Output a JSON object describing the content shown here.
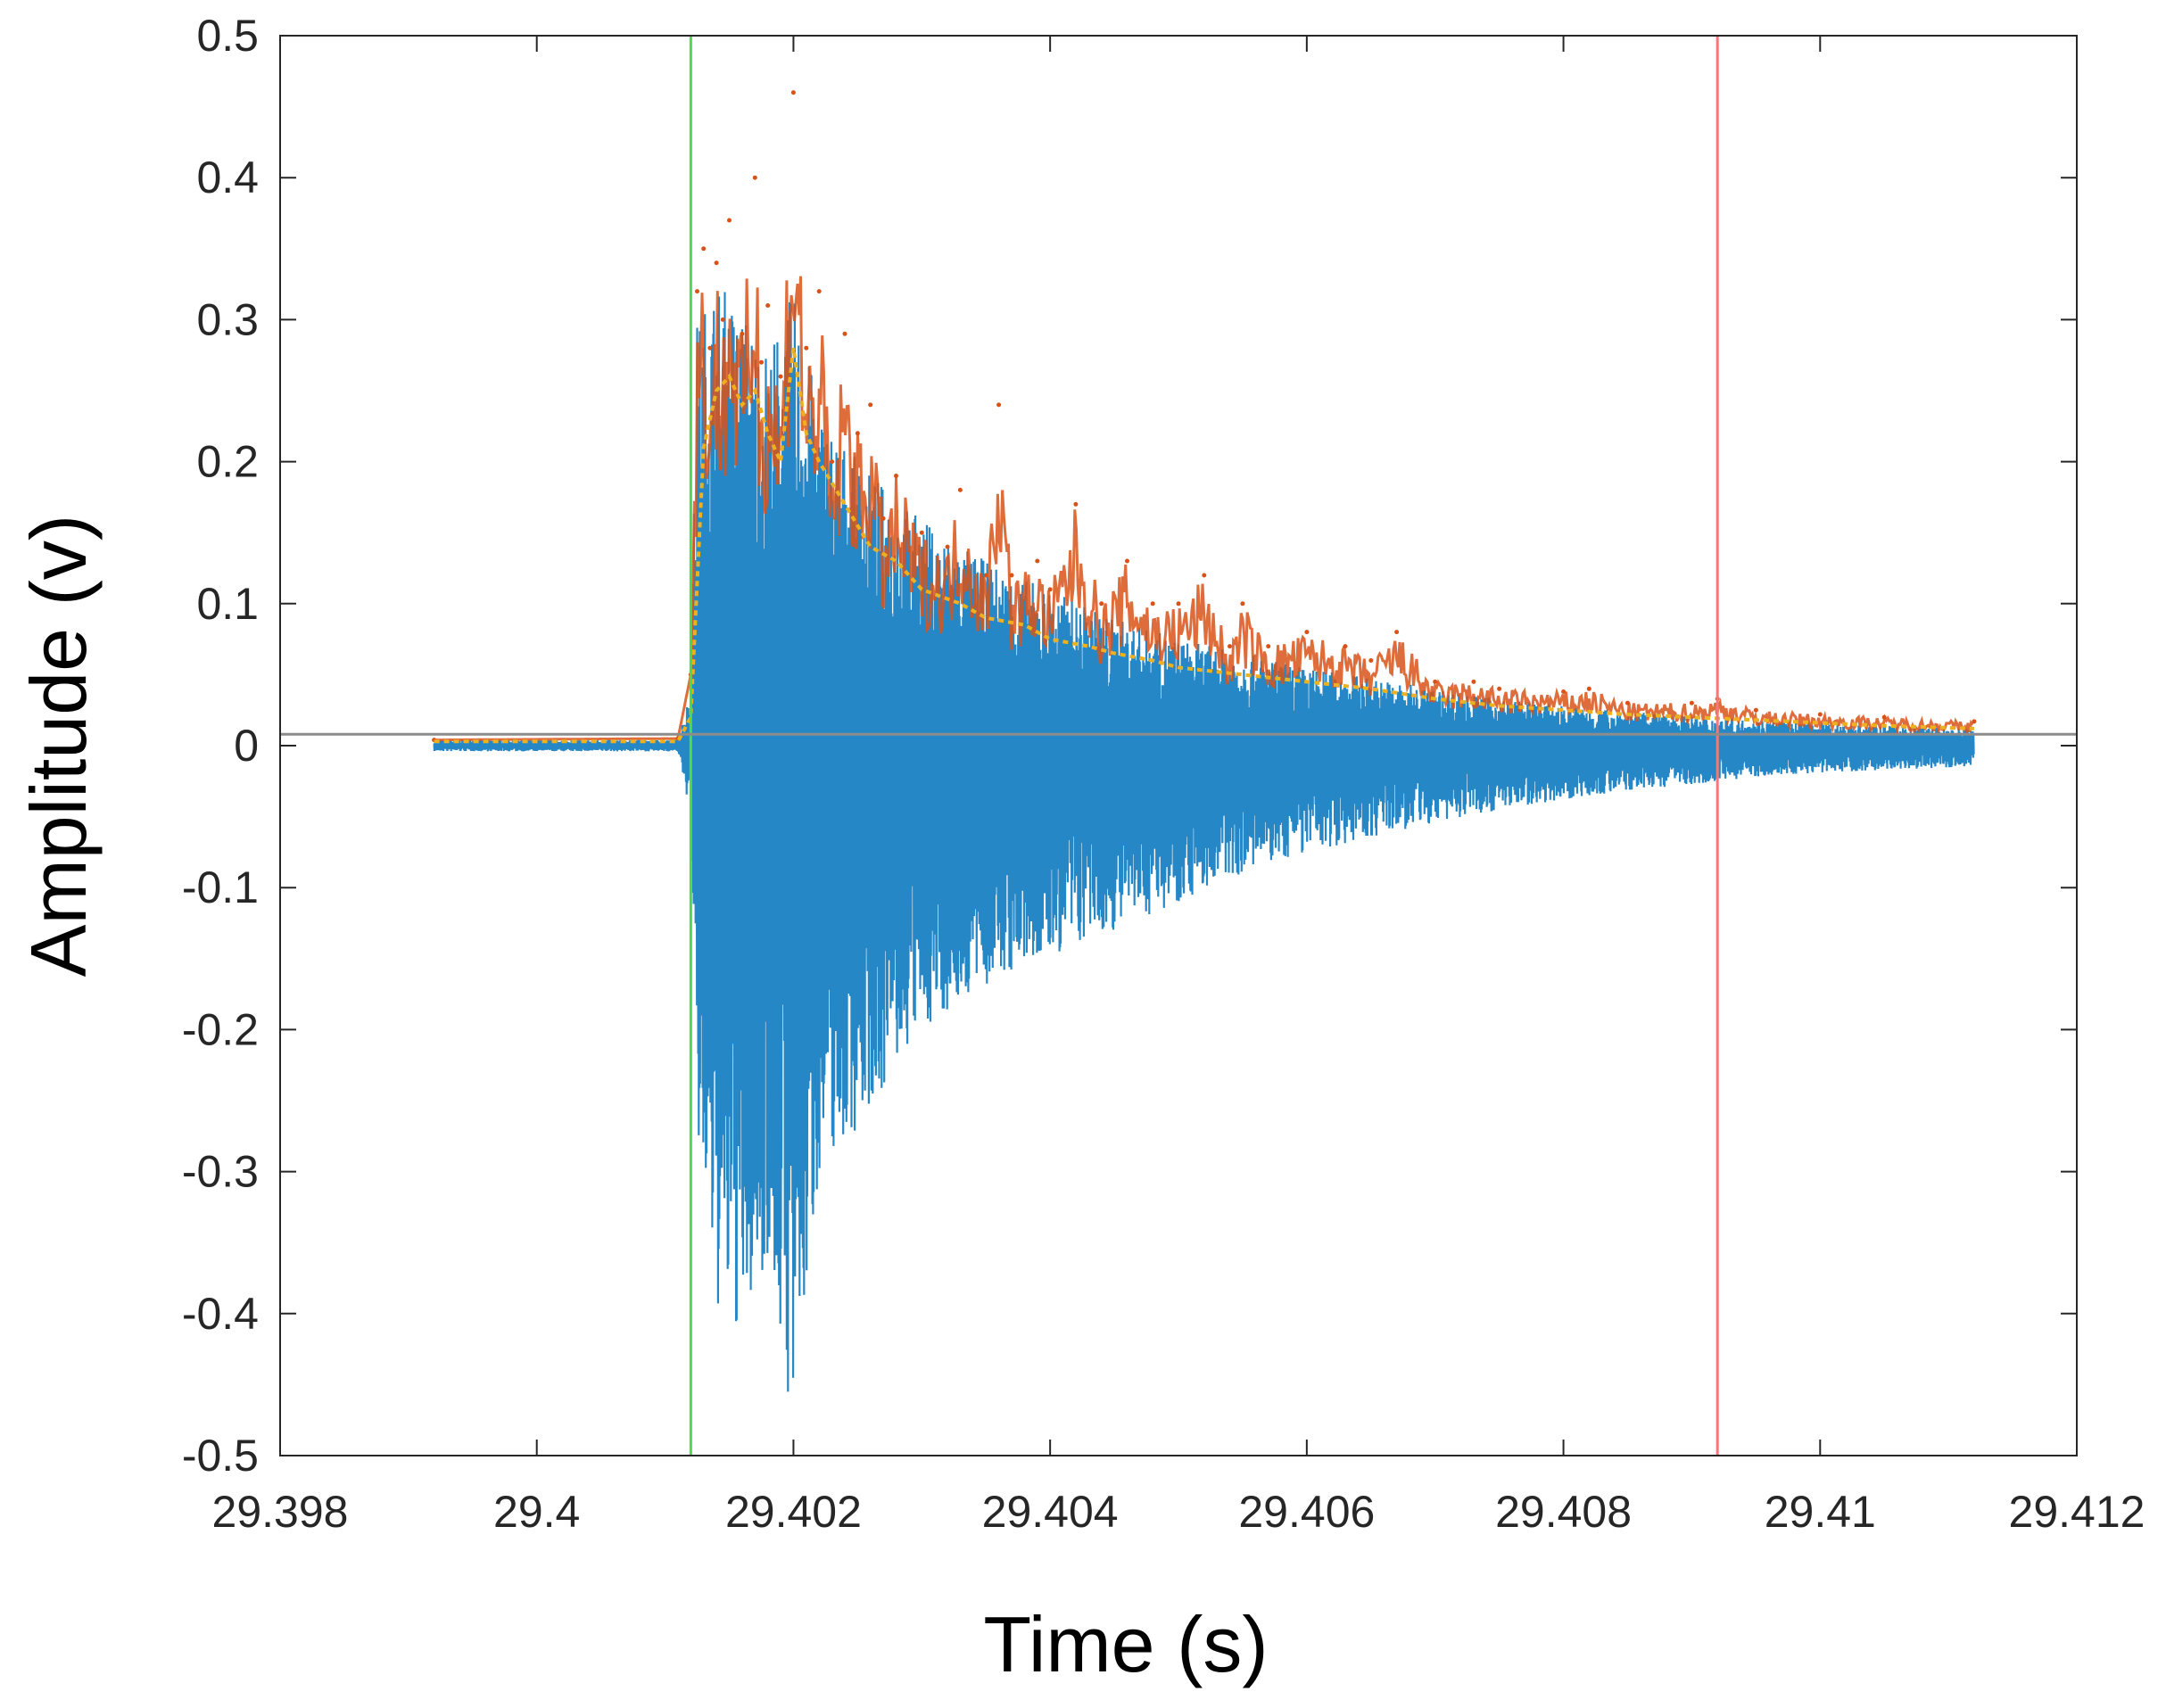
{
  "chart_data": {
    "type": "line",
    "title": "",
    "xlabel": "Time (s)",
    "ylabel": "Amplitude (v)",
    "xlim": [
      29.398,
      29.412
    ],
    "ylim": [
      -0.5,
      0.5
    ],
    "xticks": [
      29.398,
      29.4,
      29.402,
      29.404,
      29.406,
      29.408,
      29.41,
      29.412
    ],
    "xtick_labels": [
      "29.398",
      "29.4",
      "29.402",
      "29.404",
      "29.406",
      "29.408",
      "29.41",
      "29.412"
    ],
    "yticks": [
      0.5,
      0.4,
      0.3,
      0.2,
      0.1,
      0,
      -0.1,
      -0.2,
      -0.3,
      -0.4,
      -0.5
    ],
    "ytick_labels": [
      "0.5",
      "0.4",
      "0.3",
      "0.2",
      "0.1",
      "0",
      "-0.1",
      "-0.2",
      "-0.3",
      "-0.4",
      "-0.5"
    ],
    "grid": false,
    "legend": "none",
    "signal_range": [
      29.3992,
      29.4112
    ],
    "onset_time": 29.4012,
    "series": [
      {
        "color": "#0072BD",
        "style": "raw waveform (dense oscillation)",
        "env_pos": [
          [
            29.3992,
            0.004
          ],
          [
            29.4011,
            0.004
          ],
          [
            29.4012,
            0.04
          ],
          [
            29.40125,
            0.3
          ],
          [
            29.4014,
            0.33
          ],
          [
            29.4016,
            0.31
          ],
          [
            29.4018,
            0.28
          ],
          [
            29.402,
            0.32
          ],
          [
            29.4022,
            0.24
          ],
          [
            29.4025,
            0.2
          ],
          [
            29.403,
            0.16
          ],
          [
            29.4035,
            0.13
          ],
          [
            29.404,
            0.11
          ],
          [
            29.4045,
            0.09
          ],
          [
            29.405,
            0.075
          ],
          [
            29.4055,
            0.065
          ],
          [
            29.406,
            0.055
          ],
          [
            29.4065,
            0.048
          ],
          [
            29.407,
            0.04
          ],
          [
            29.4075,
            0.033
          ],
          [
            29.408,
            0.028
          ],
          [
            29.4085,
            0.024
          ],
          [
            29.409,
            0.021
          ],
          [
            29.4095,
            0.018
          ],
          [
            29.41,
            0.016
          ],
          [
            29.4105,
            0.014
          ],
          [
            29.4112,
            0.012
          ]
        ],
        "env_neg": [
          [
            29.3992,
            -0.004
          ],
          [
            29.4011,
            -0.004
          ],
          [
            29.4012,
            -0.05
          ],
          [
            29.40125,
            -0.28
          ],
          [
            29.4014,
            -0.4
          ],
          [
            29.4016,
            -0.42
          ],
          [
            29.4018,
            -0.36
          ],
          [
            29.402,
            -0.49
          ],
          [
            29.4022,
            -0.3
          ],
          [
            29.4025,
            -0.27
          ],
          [
            29.403,
            -0.2
          ],
          [
            29.4035,
            -0.17
          ],
          [
            29.404,
            -0.15
          ],
          [
            29.4045,
            -0.13
          ],
          [
            29.405,
            -0.11
          ],
          [
            29.4055,
            -0.09
          ],
          [
            29.406,
            -0.075
          ],
          [
            29.4065,
            -0.065
          ],
          [
            29.407,
            -0.055
          ],
          [
            29.4075,
            -0.045
          ],
          [
            29.408,
            -0.038
          ],
          [
            29.4085,
            -0.032
          ],
          [
            29.409,
            -0.027
          ],
          [
            29.4095,
            -0.022
          ],
          [
            29.41,
            -0.019
          ],
          [
            29.4105,
            -0.017
          ],
          [
            29.4112,
            -0.015
          ]
        ]
      },
      {
        "color": "#D95319",
        "style": "upper envelope peaks",
        "points": [
          [
            29.3992,
            0.004
          ],
          [
            29.4011,
            0.005
          ],
          [
            29.4012,
            0.05
          ],
          [
            29.40125,
            0.32
          ],
          [
            29.4013,
            0.35
          ],
          [
            29.40135,
            0.28
          ],
          [
            29.4014,
            0.34
          ],
          [
            29.40145,
            0.3
          ],
          [
            29.4015,
            0.37
          ],
          [
            29.4016,
            0.29
          ],
          [
            29.4017,
            0.4
          ],
          [
            29.40175,
            0.27
          ],
          [
            29.4018,
            0.31
          ],
          [
            29.4019,
            0.26
          ],
          [
            29.402,
            0.46
          ],
          [
            29.4021,
            0.28
          ],
          [
            29.4022,
            0.32
          ],
          [
            29.4023,
            0.2
          ],
          [
            29.4024,
            0.29
          ],
          [
            29.4025,
            0.22
          ],
          [
            29.4026,
            0.24
          ],
          [
            29.4027,
            0.16
          ],
          [
            29.4028,
            0.19
          ],
          [
            29.403,
            0.15
          ],
          [
            29.4032,
            0.14
          ],
          [
            29.4033,
            0.18
          ],
          [
            29.4035,
            0.12
          ],
          [
            29.4036,
            0.24
          ],
          [
            29.4037,
            0.12
          ],
          [
            29.4039,
            0.13
          ],
          [
            29.404,
            0.11
          ],
          [
            29.4042,
            0.17
          ],
          [
            29.4044,
            0.1
          ],
          [
            29.4046,
            0.13
          ],
          [
            29.4048,
            0.1
          ],
          [
            29.405,
            0.1
          ],
          [
            29.4052,
            0.12
          ],
          [
            29.4054,
            0.07
          ],
          [
            29.4055,
            0.1
          ],
          [
            29.4057,
            0.07
          ],
          [
            29.406,
            0.08
          ],
          [
            29.4063,
            0.07
          ],
          [
            29.4065,
            0.06
          ],
          [
            29.4067,
            0.08
          ],
          [
            29.407,
            0.045
          ],
          [
            29.4073,
            0.045
          ],
          [
            29.4075,
            0.04
          ],
          [
            29.408,
            0.038
          ],
          [
            29.4082,
            0.04
          ],
          [
            29.4085,
            0.03
          ],
          [
            29.409,
            0.03
          ],
          [
            29.4092,
            0.033
          ],
          [
            29.4095,
            0.025
          ],
          [
            29.41,
            0.022
          ],
          [
            29.4105,
            0.02
          ],
          [
            29.4112,
            0.017
          ]
        ]
      },
      {
        "color": "#EDB120",
        "style": "smoothed envelope",
        "points": [
          [
            29.3992,
            0.003
          ],
          [
            29.4011,
            0.003
          ],
          [
            29.4012,
            0.02
          ],
          [
            29.4013,
            0.21
          ],
          [
            29.4014,
            0.25
          ],
          [
            29.4015,
            0.26
          ],
          [
            29.4016,
            0.24
          ],
          [
            29.4017,
            0.25
          ],
          [
            29.4018,
            0.22
          ],
          [
            29.4019,
            0.2
          ],
          [
            29.402,
            0.28
          ],
          [
            29.4021,
            0.22
          ],
          [
            29.4022,
            0.2
          ],
          [
            29.4024,
            0.17
          ],
          [
            29.4026,
            0.14
          ],
          [
            29.4028,
            0.13
          ],
          [
            29.403,
            0.11
          ],
          [
            29.4033,
            0.1
          ],
          [
            29.4035,
            0.09
          ],
          [
            29.4038,
            0.085
          ],
          [
            29.404,
            0.075
          ],
          [
            29.4043,
            0.07
          ],
          [
            29.4045,
            0.065
          ],
          [
            29.4048,
            0.06
          ],
          [
            29.405,
            0.055
          ],
          [
            29.4055,
            0.05
          ],
          [
            29.406,
            0.045
          ],
          [
            29.4065,
            0.04
          ],
          [
            29.407,
            0.033
          ],
          [
            29.4075,
            0.028
          ],
          [
            29.408,
            0.025
          ],
          [
            29.4085,
            0.022
          ],
          [
            29.409,
            0.02
          ],
          [
            29.4095,
            0.018
          ],
          [
            29.41,
            0.016
          ],
          [
            29.4105,
            0.014
          ],
          [
            29.4112,
            0.012
          ]
        ]
      }
    ],
    "markers": [
      {
        "x": 29.4012,
        "color": "#4CDB4C"
      },
      {
        "x": 29.4092,
        "color": "#F07A7A"
      }
    ],
    "hline": {
      "y": 0.008,
      "color": "#8C8C8C"
    }
  }
}
